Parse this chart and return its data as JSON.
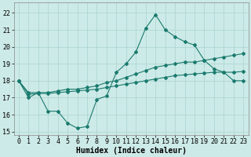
{
  "title": "",
  "xlabel": "Humidex (Indice chaleur)",
  "ylabel": "",
  "xlim": [
    -0.5,
    23.5
  ],
  "ylim": [
    14.8,
    22.6
  ],
  "yticks": [
    15,
    16,
    17,
    18,
    19,
    20,
    21,
    22
  ],
  "xticks": [
    0,
    1,
    2,
    3,
    4,
    5,
    6,
    7,
    8,
    9,
    10,
    11,
    12,
    13,
    14,
    15,
    16,
    17,
    18,
    19,
    20,
    21,
    22,
    23
  ],
  "background_color": "#cceae7",
  "grid_color": "#aad4d0",
  "line_color": "#1a7a6e",
  "line1_x": [
    0,
    1,
    2,
    3,
    4,
    5,
    6,
    7,
    8,
    9,
    10,
    11,
    12,
    13,
    14,
    15,
    16,
    17,
    18,
    19,
    20,
    21,
    22,
    23
  ],
  "line1_y": [
    18.0,
    17.0,
    17.3,
    16.2,
    16.2,
    15.5,
    15.2,
    15.3,
    16.9,
    17.1,
    18.5,
    19.0,
    19.7,
    21.1,
    21.9,
    21.0,
    20.6,
    20.3,
    20.1,
    19.2,
    18.7,
    18.5,
    18.0,
    18.0
  ],
  "line2_x": [
    0,
    23
  ],
  "line2_y": [
    18.0,
    18.0
  ],
  "line3_x": [
    0,
    23
  ],
  "line3_y": [
    18.0,
    18.0
  ],
  "line4_x": [
    0,
    1,
    2,
    3,
    4,
    5,
    6,
    7,
    8,
    9,
    10,
    11,
    12,
    13,
    14,
    15,
    16,
    17,
    18,
    19,
    20,
    21,
    22,
    23
  ],
  "line4_y": [
    18.0,
    17.3,
    17.3,
    17.3,
    17.4,
    17.5,
    17.5,
    17.6,
    17.7,
    17.9,
    18.0,
    18.2,
    18.4,
    18.6,
    18.8,
    18.9,
    19.0,
    19.1,
    19.1,
    19.2,
    19.3,
    19.4,
    19.5,
    19.6
  ],
  "line5_x": [
    0,
    1,
    2,
    3,
    4,
    5,
    6,
    7,
    8,
    9,
    10,
    11,
    12,
    13,
    14,
    15,
    16,
    17,
    18,
    19,
    20,
    21,
    22,
    23
  ],
  "line5_y": [
    18.0,
    17.2,
    17.25,
    17.25,
    17.3,
    17.35,
    17.4,
    17.45,
    17.5,
    17.6,
    17.7,
    17.8,
    17.9,
    18.0,
    18.1,
    18.2,
    18.3,
    18.35,
    18.4,
    18.45,
    18.5,
    18.5,
    18.5,
    18.55
  ],
  "xlabel_fontsize": 7,
  "tick_fontsize": 6,
  "dpi": 100,
  "figsize": [
    3.2,
    2.0
  ]
}
